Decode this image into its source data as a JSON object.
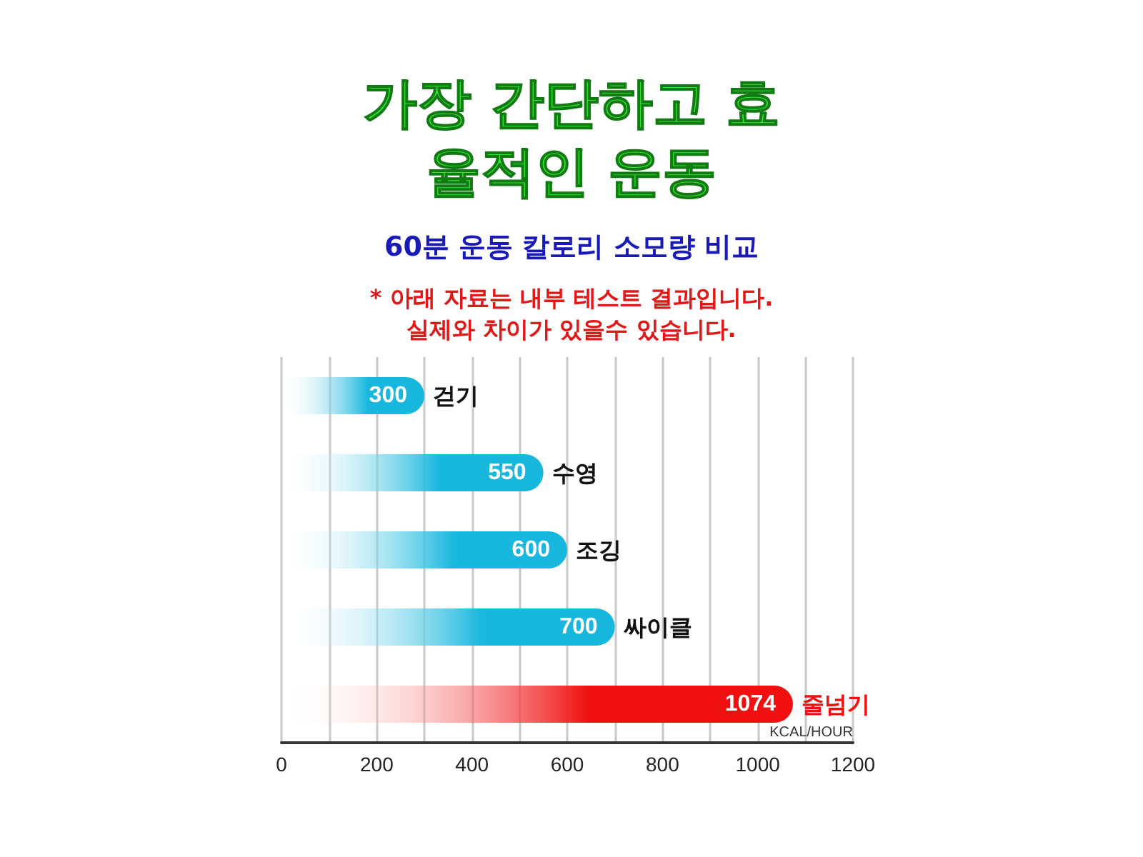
{
  "chart_data": {
    "type": "bar",
    "orientation": "horizontal",
    "title": "가장 간단하고 효율적인 운동",
    "subtitle": "60분 운동 칼로리 소모량 비교",
    "annotations": [
      "* 아래 자료는 내부 테스트 결과입니다.",
      "실제와 차이가 있을수 있습니다."
    ],
    "xlabel": "KCAL/HOUR",
    "categories": [
      "걷기",
      "수영",
      "조깅",
      "싸이클",
      "줄넘기"
    ],
    "values": [
      300,
      550,
      600,
      700,
      1074
    ],
    "colors": [
      "#18b8de",
      "#18b8de",
      "#18b8de",
      "#18b8de",
      "#f01010"
    ],
    "data_labels": true,
    "xlim": [
      0,
      1200
    ],
    "xticks": [
      0,
      {
        "value": 100,
        "label": null
      },
      200,
      {
        "value": 300,
        "label": null
      },
      400,
      {
        "value": 500,
        "label": null
      },
      600,
      {
        "value": 700,
        "label": null
      },
      800,
      {
        "value": 900,
        "label": null
      },
      1000,
      {
        "value": 1100,
        "label": null
      },
      1200
    ],
    "grid": "x"
  }
}
